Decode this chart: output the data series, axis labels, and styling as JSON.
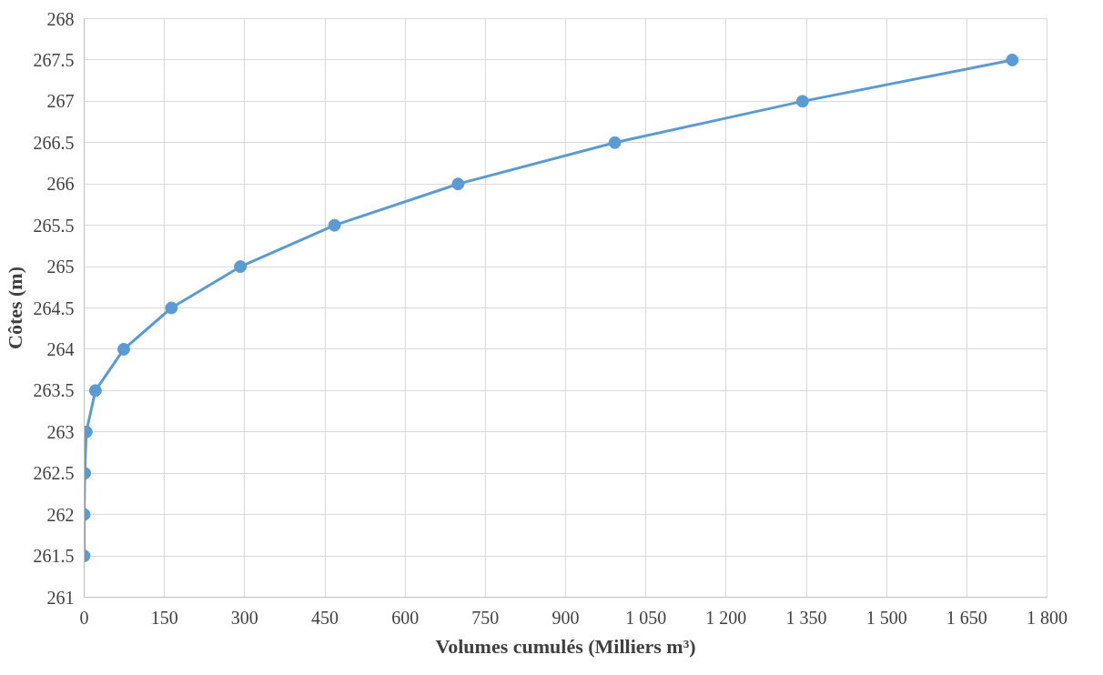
{
  "chart_data": {
    "type": "line",
    "xlabel": "Volumes cumulés (Milliers m³)",
    "ylabel": "Côtes (m)",
    "x": [
      0,
      0,
      1,
      4,
      21,
      74,
      163,
      292,
      468,
      699,
      992,
      1343,
      1735
    ],
    "series": [
      {
        "color": "#5b9bd5",
        "values": [
          261.5,
          262,
          262.5,
          263,
          263.5,
          264,
          264.5,
          265,
          265.5,
          266,
          266.5,
          267,
          267.5
        ]
      }
    ],
    "xlim": [
      0,
      1800
    ],
    "xticks": [
      0,
      150,
      300,
      450,
      600,
      750,
      900,
      {
        "value": 1050,
        "label": "1 050"
      },
      {
        "value": 1200,
        "label": "1 200"
      },
      {
        "value": 1350,
        "label": "1 350"
      },
      {
        "value": 1500,
        "label": "1 500"
      },
      {
        "value": 1650,
        "label": "1 650"
      },
      {
        "value": 1800,
        "label": "1 800"
      }
    ],
    "ylim": [
      261,
      268
    ],
    "yticks": [
      261,
      261.5,
      262,
      262.5,
      263,
      263.5,
      264,
      264.5,
      265,
      265.5,
      266,
      266.5,
      267,
      267.5,
      268
    ],
    "grid": true,
    "marker": "circle",
    "line_style": "solid"
  }
}
